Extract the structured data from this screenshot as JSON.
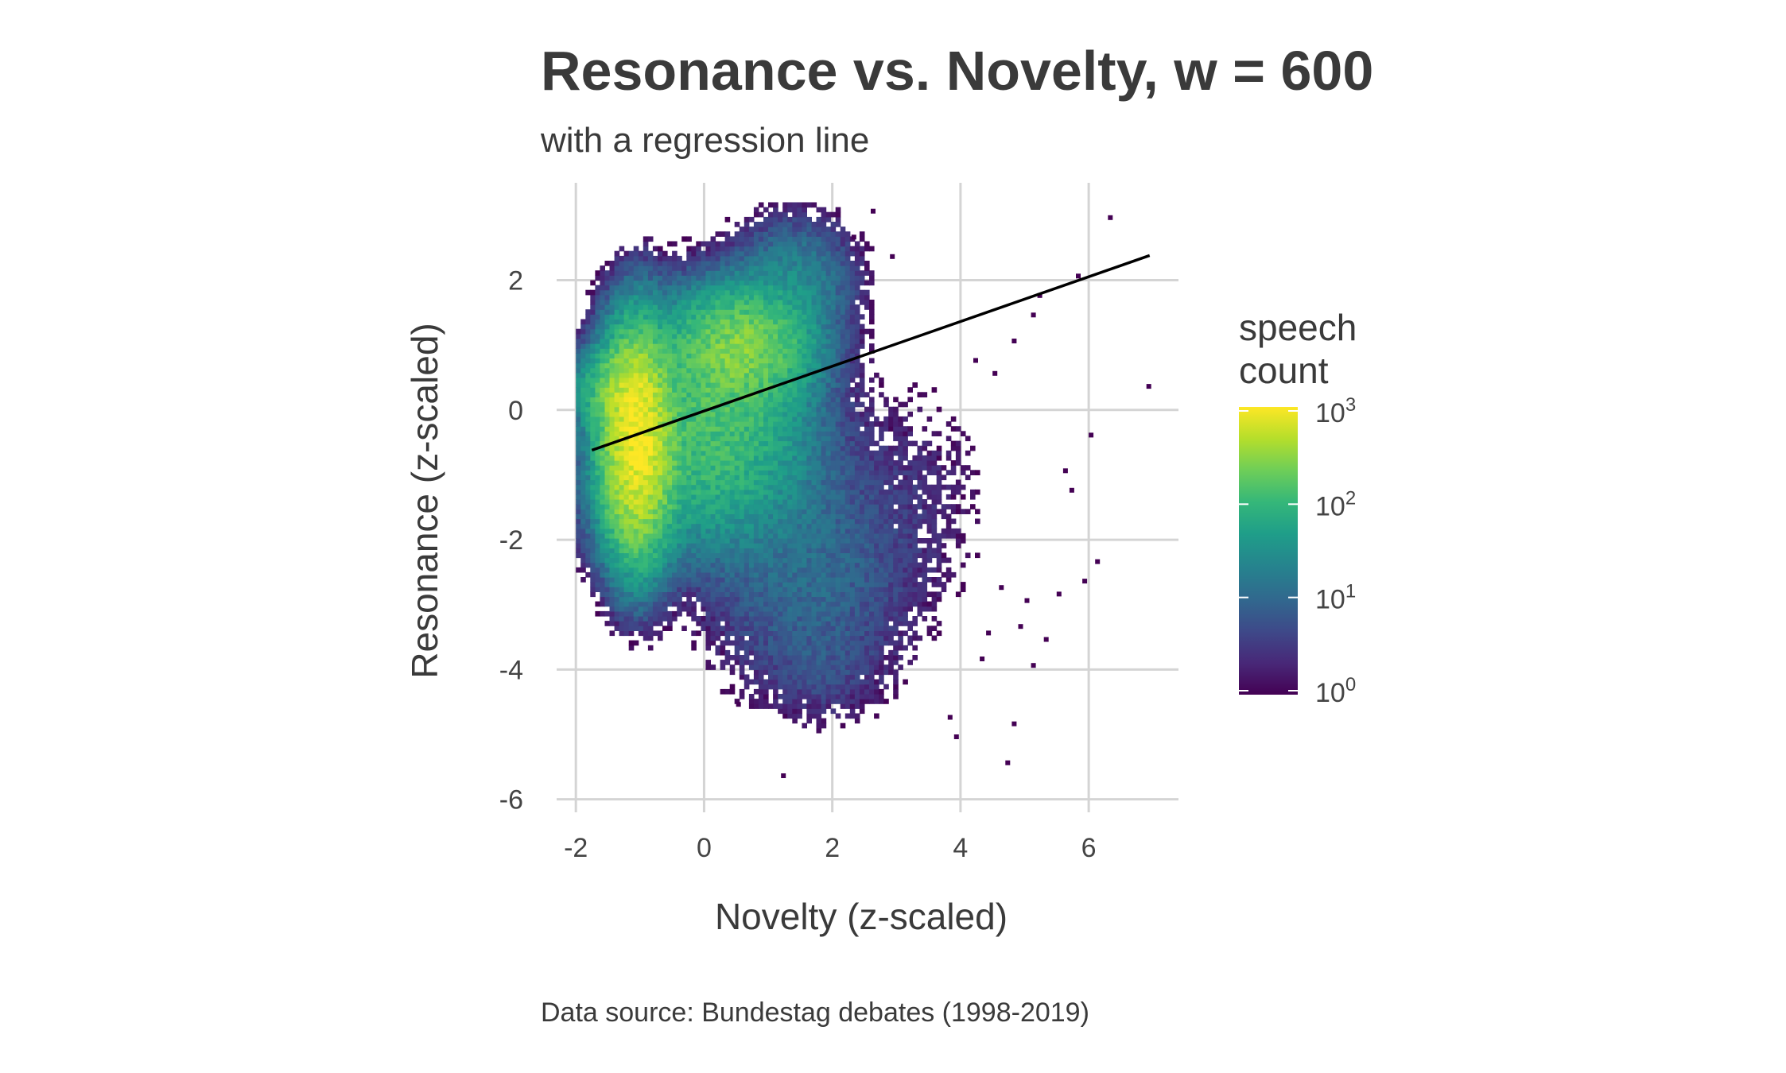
{
  "chart_data": {
    "type": "heatmap",
    "title": "Resonance vs. Novelty, w = 600",
    "subtitle": "with a regression line",
    "xlabel": "Novelty (z-scaled)",
    "ylabel": "Resonance (z-scaled)",
    "caption": "Data source: Bundestag debates (1998-2019)",
    "xlim": [
      -2.3,
      7.4
    ],
    "ylim": [
      -6.2,
      3.5
    ],
    "x_ticks": [
      -2,
      0,
      2,
      4,
      6
    ],
    "y_ticks": [
      -6,
      -4,
      -2,
      0,
      2
    ],
    "x_tick_labels": [
      "-2",
      "0",
      "2",
      "4",
      "6"
    ],
    "y_tick_labels": [
      "-6",
      "-4",
      "-2",
      "0",
      "2"
    ],
    "grid": true,
    "regression_line": {
      "x": [
        -1.75,
        6.95
      ],
      "y": [
        -0.62,
        2.38
      ],
      "color": "#000000"
    },
    "legend": {
      "title_lines": [
        "speech",
        "count"
      ],
      "scale": "log10",
      "range": [
        0,
        3
      ],
      "ticks": [
        {
          "log": 3,
          "base": "10",
          "exp": "3"
        },
        {
          "log": 2,
          "base": "10",
          "exp": "2"
        },
        {
          "log": 1,
          "base": "10",
          "exp": "1"
        },
        {
          "log": 0,
          "base": "10",
          "exp": "0"
        }
      ],
      "placement": "right"
    },
    "colormap": "viridis",
    "colors": {
      "viridis": [
        "#440154",
        "#482878",
        "#3e4989",
        "#31688e",
        "#26828e",
        "#1f9e89",
        "#35b779",
        "#6ece58",
        "#b5de2b",
        "#fde725"
      ],
      "text": "#3a3a3a",
      "grid": "#d4d4d4"
    },
    "density_components": [
      {
        "cx": -1.05,
        "cy": -0.5,
        "sx": 0.28,
        "sy": 0.85,
        "w": 1000
      },
      {
        "cx": -1.3,
        "cy": 0.3,
        "sx": 0.35,
        "sy": 0.35,
        "w": 180
      },
      {
        "cx": 0.6,
        "cy": 1.0,
        "sx": 0.55,
        "sy": 0.45,
        "w": 260
      },
      {
        "cx": 0.2,
        "cy": 0.1,
        "sx": 0.75,
        "sy": 0.8,
        "w": 120
      },
      {
        "cx": -0.1,
        "cy": -1.0,
        "sx": 0.9,
        "sy": 0.7,
        "w": 60
      },
      {
        "cx": 1.4,
        "cy": 2.0,
        "sx": 0.5,
        "sy": 0.5,
        "w": 25
      },
      {
        "cx": 1.6,
        "cy": -2.5,
        "sx": 0.9,
        "sy": 1.0,
        "w": 12
      },
      {
        "cx": 1.9,
        "cy": -4.0,
        "sx": 0.55,
        "sy": 0.45,
        "w": 3
      },
      {
        "cx": 3.3,
        "cy": -1.2,
        "sx": 0.75,
        "sy": 1.1,
        "w": 2
      }
    ],
    "outlier_points": [
      {
        "x": 2.6,
        "y": 3.1
      },
      {
        "x": 6.3,
        "y": 3.0
      },
      {
        "x": 5.8,
        "y": 2.1
      },
      {
        "x": 5.2,
        "y": 1.8
      },
      {
        "x": 6.9,
        "y": 0.4
      },
      {
        "x": 6.0,
        "y": -0.35
      },
      {
        "x": 6.1,
        "y": -2.3
      },
      {
        "x": 5.9,
        "y": -2.6
      },
      {
        "x": 5.5,
        "y": -2.8
      },
      {
        "x": 5.3,
        "y": -3.5
      },
      {
        "x": 4.8,
        "y": -4.8
      },
      {
        "x": 4.7,
        "y": -5.4
      },
      {
        "x": 1.2,
        "y": -5.6
      },
      {
        "x": 0.5,
        "y": -4.5
      },
      {
        "x": 3.8,
        "y": -4.7
      },
      {
        "x": 5.1,
        "y": -3.9
      },
      {
        "x": 4.3,
        "y": -3.8
      },
      {
        "x": 4.4,
        "y": -3.4
      },
      {
        "x": 4.9,
        "y": -3.3
      },
      {
        "x": 5.6,
        "y": -0.9
      },
      {
        "x": 5.7,
        "y": -1.2
      },
      {
        "x": 4.2,
        "y": 0.8
      },
      {
        "x": 4.5,
        "y": 0.6
      },
      {
        "x": 4.8,
        "y": 1.1
      },
      {
        "x": 5.1,
        "y": 1.5
      },
      {
        "x": 3.9,
        "y": -5.0
      },
      {
        "x": 2.9,
        "y": 2.4
      },
      {
        "x": 2.3,
        "y": 2.7
      },
      {
        "x": 4.6,
        "y": -2.7
      },
      {
        "x": 5.0,
        "y": -2.9
      }
    ]
  }
}
